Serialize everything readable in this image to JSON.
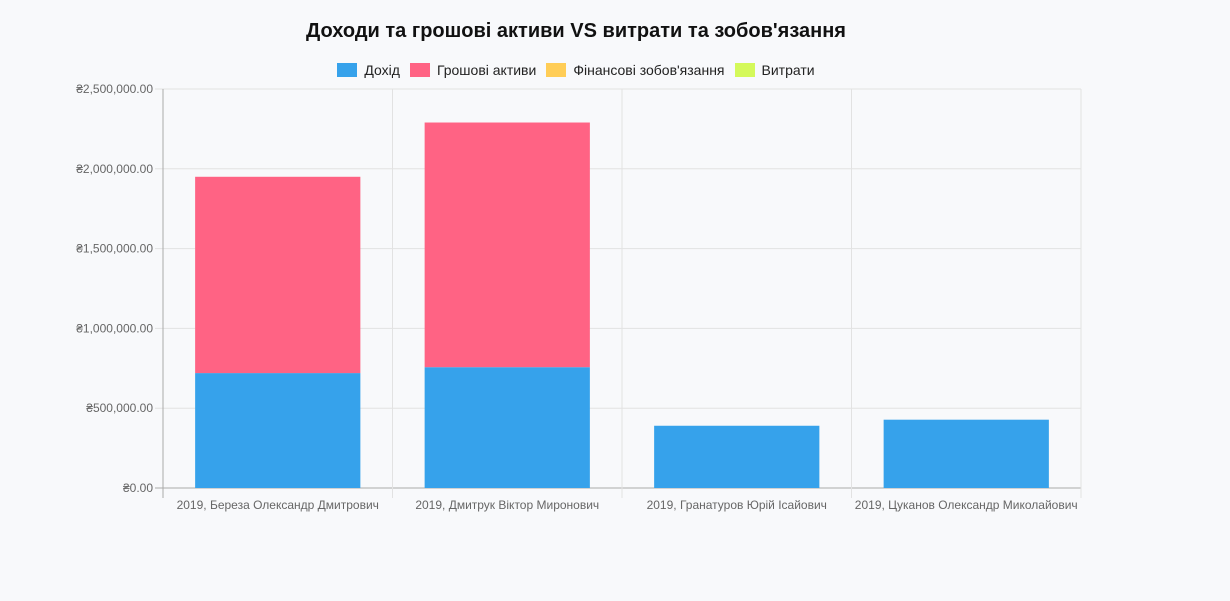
{
  "chart_data": {
    "type": "bar",
    "stacked": true,
    "title": "Доходи та грошові активи VS витрати та зобов'язання",
    "categories": [
      "2019, Береза Олександр Дмитрович",
      "2019, Дмитрук Віктор Миронович",
      "2019, Гранатуров Юрій Ісайович",
      "2019, Цуканов Олександр Миколайович"
    ],
    "series": [
      {
        "name": "Дохід",
        "color": "#36a2eb",
        "values": [
          720000,
          757000,
          390000,
          428000
        ]
      },
      {
        "name": "Грошові активи",
        "color": "#ff6384",
        "values": [
          1230000,
          1533000,
          0,
          0
        ]
      },
      {
        "name": "Фінансові зобов'язання",
        "color": "#ffcd56",
        "values": [
          0,
          0,
          0,
          0
        ]
      },
      {
        "name": "Витрати",
        "color": "#d4f95a",
        "values": [
          0,
          0,
          0,
          0
        ]
      }
    ],
    "ylim": [
      0,
      2500000
    ],
    "yticks": [
      0,
      500000,
      1000000,
      1500000,
      2000000,
      2500000
    ],
    "ytick_labels": [
      "₴0.00",
      "₴500,000.00",
      "₴1,000,000.00",
      "₴1,500,000.00",
      "₴2,000,000.00",
      "₴2,500,000.00"
    ],
    "grid": true,
    "legend_position": "top"
  }
}
